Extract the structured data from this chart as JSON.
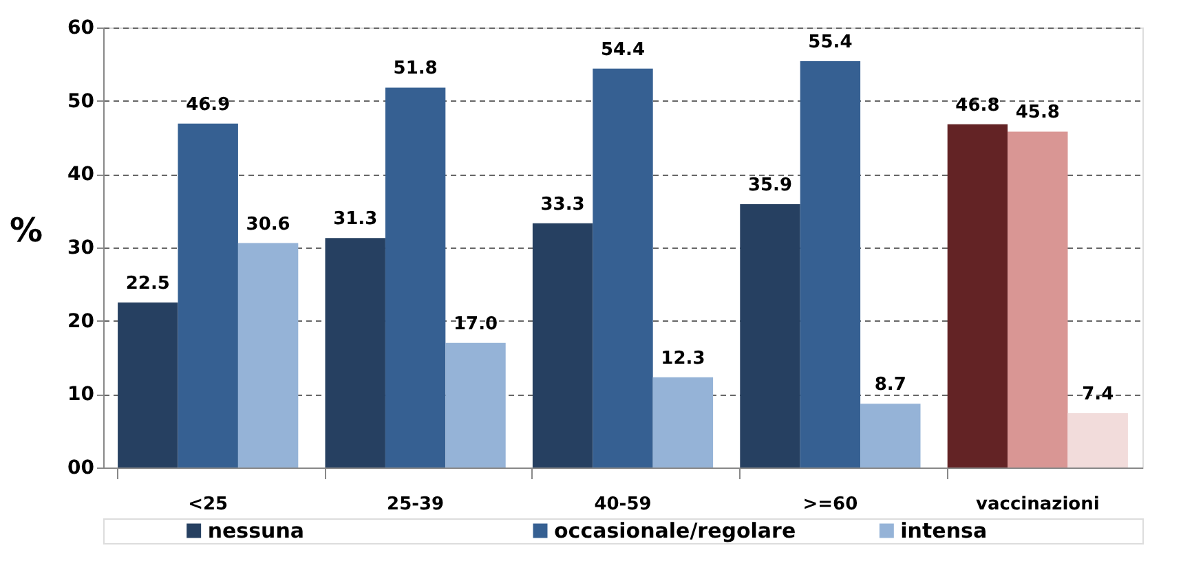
{
  "chart_data": {
    "type": "bar",
    "ylabel": "%",
    "categories": [
      "<25",
      "25-39",
      "40-59",
      ">=60",
      "vaccinazioni"
    ],
    "series": [
      {
        "name": "nessuna",
        "color": "#264061",
        "colors": [
          "#264061",
          "#264061",
          "#264061",
          "#264061",
          "#632325"
        ],
        "values": [
          22.5,
          31.3,
          33.3,
          35.9,
          46.8
        ]
      },
      {
        "name": "occasionale/regolare",
        "color": "#366092",
        "colors": [
          "#366092",
          "#366092",
          "#366092",
          "#366092",
          "#d99694"
        ],
        "values": [
          46.9,
          51.8,
          54.4,
          55.4,
          45.8
        ]
      },
      {
        "name": "intensa",
        "color": "#95b3d7",
        "colors": [
          "#95b3d7",
          "#95b3d7",
          "#95b3d7",
          "#95b3d7",
          "#f2dcdb"
        ],
        "values": [
          30.6,
          17.0,
          12.3,
          8.7,
          7.4
        ]
      }
    ],
    "ylim": [
      0,
      60
    ],
    "yticks": [
      {
        "value": 0,
        "label": "00"
      },
      10,
      20,
      30,
      40,
      50,
      60
    ],
    "value_labels": [
      [
        "22.5",
        "31.3",
        "33.3",
        "35.9",
        "46.8"
      ],
      [
        "46.9",
        "51.8",
        "54.4",
        "55.4",
        "45.8"
      ],
      [
        "30.6",
        "17.0",
        "12.3",
        "8.7",
        "7.4"
      ]
    ],
    "grid": "y",
    "legend": "bottom"
  }
}
